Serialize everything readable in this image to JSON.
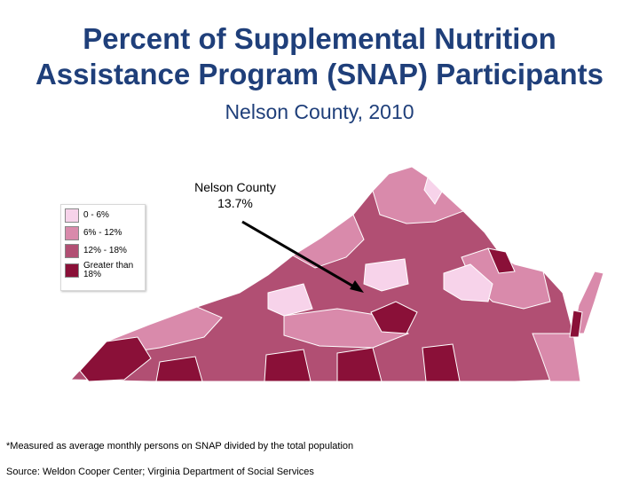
{
  "title": {
    "line1": "Percent of Supplemental Nutrition",
    "line2": "Assistance Program (SNAP) Participants"
  },
  "subtitle": "Nelson County, 2010",
  "callout": {
    "county": "Nelson County",
    "value": "13.7%"
  },
  "legend": {
    "items": [
      {
        "label": "0 - 6%",
        "color": "#f7d3ea"
      },
      {
        "label": "6% - 12%",
        "color": "#d98aab"
      },
      {
        "label": "12% - 18%",
        "color": "#b14f73"
      },
      {
        "label": "Greater than 18%",
        "color": "#8a1038"
      }
    ]
  },
  "footnote": "*Measured as average monthly persons on SNAP divided by the total population",
  "source": "Source: Weldon Cooper Center; Virginia Department of Social Services"
}
